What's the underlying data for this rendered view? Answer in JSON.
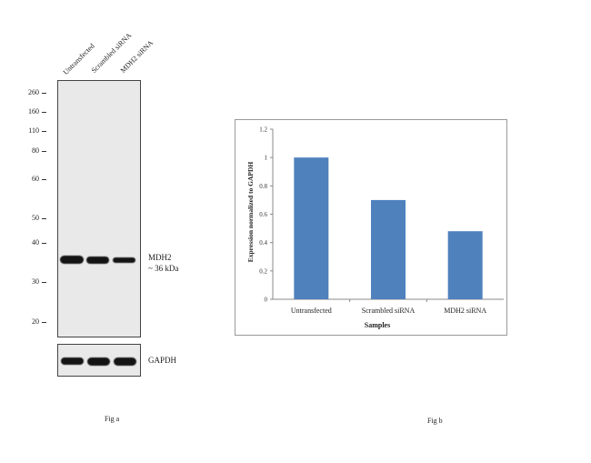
{
  "fig_a": {
    "caption": "Fig a",
    "lanes": [
      "Untransfected",
      "Scrambled siRNA",
      "MDH2 siRNA"
    ],
    "markers": [
      "260",
      "160",
      "110",
      "80",
      "60",
      "50",
      "40",
      "30",
      "20"
    ],
    "target_label": "MDH2",
    "target_size": "~ 36 kDa",
    "loading_label": "GAPDH",
    "band_intensity": {
      "target": [
        1.0,
        0.95,
        0.75
      ],
      "loading": [
        0.9,
        1.0,
        0.95
      ]
    }
  },
  "fig_b": {
    "caption": "Fig b"
  },
  "chart_data": {
    "type": "bar",
    "categories": [
      "Untransfected",
      "Scrambled siRNA",
      "MDH2 siRNA"
    ],
    "values": [
      1.0,
      0.7,
      0.48
    ],
    "xlabel": "Samples",
    "ylabel": "Expression normalized to GAPDH",
    "ylim": [
      0,
      1.2
    ],
    "yticks": [
      "0",
      "0.2",
      "0.4",
      "0.6",
      "0.8",
      "1",
      "1.2"
    ],
    "bar_color": "#4f81bd",
    "grid": false,
    "legend": "none"
  }
}
